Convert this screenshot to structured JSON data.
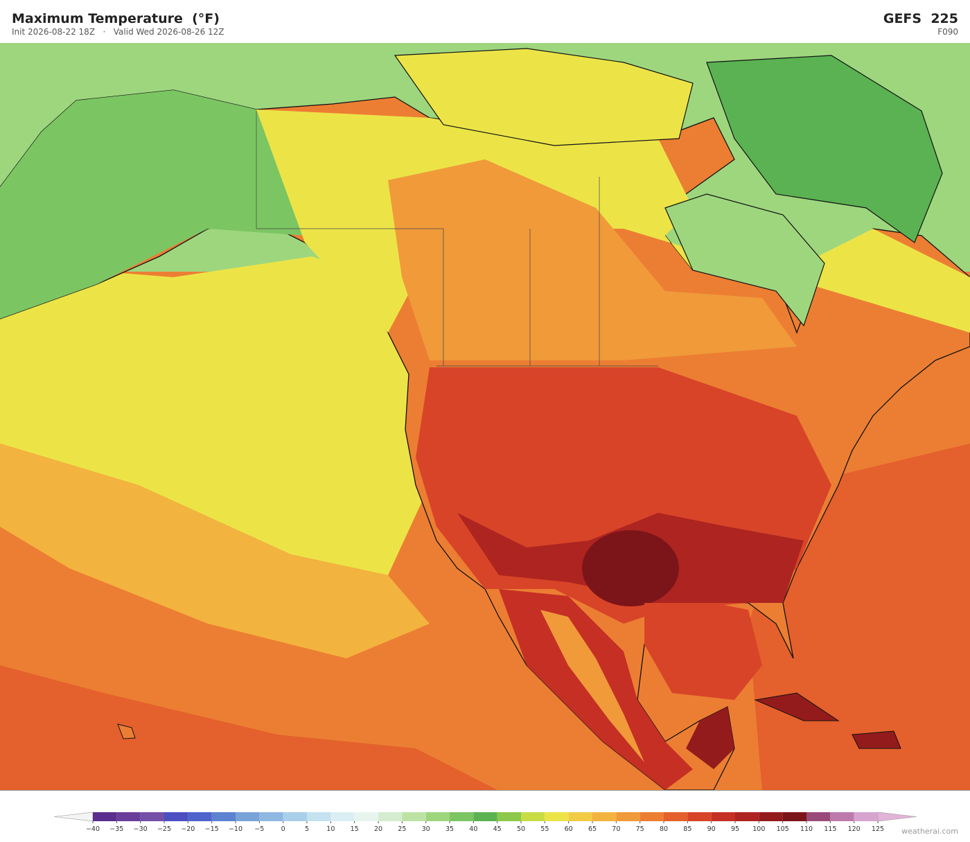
{
  "header": {
    "title": "Maximum Temperature  (°F)",
    "init": "Init 2026-08-22 18Z",
    "separator": "·",
    "valid": "Valid Wed 2026-08-26 12Z",
    "model": "GEFS  225",
    "forecast_hour": "F090"
  },
  "colorbar": {
    "levels": [
      {
        "value": -40,
        "label": "−40"
      },
      {
        "value": -35,
        "label": "−35"
      },
      {
        "value": -30,
        "label": "−30"
      },
      {
        "value": -25,
        "label": "−25"
      },
      {
        "value": -20,
        "label": "−20"
      },
      {
        "value": -15,
        "label": "−15"
      },
      {
        "value": -10,
        "label": "−10"
      },
      {
        "value": -5,
        "label": "−5"
      },
      0,
      5,
      10,
      15,
      20,
      25,
      30,
      35,
      40,
      45,
      50,
      55,
      60,
      65,
      70,
      75,
      80,
      85,
      90,
      95,
      100,
      105,
      110,
      115,
      120,
      125
    ],
    "colors": [
      "#5b2d8e",
      "#6a3d9a",
      "#7450a8",
      "#4b4fc2",
      "#4e63cc",
      "#5c82d0",
      "#78a3d8",
      "#8fb8e0",
      "#a9d0ea",
      "#c4e2f0",
      "#daeef4",
      "#e8f5ef",
      "#d5ecd0",
      "#bde3a4",
      "#9ed67e",
      "#7cc563",
      "#5ab252",
      "#8cc84a",
      "#c8dc46",
      "#ece447",
      "#f2cb45",
      "#f3b33f",
      "#f09a3a",
      "#ec7e33",
      "#e4602c",
      "#d84428",
      "#c52f24",
      "#ad2420",
      "#931b1c",
      "#7c1519",
      "#9a4a7a",
      "#bd7aac",
      "#d6a4cf"
    ],
    "under_color": "#f4f4f4",
    "over_color": "#e2b4d8"
  },
  "watermark": "weatherai.com"
}
